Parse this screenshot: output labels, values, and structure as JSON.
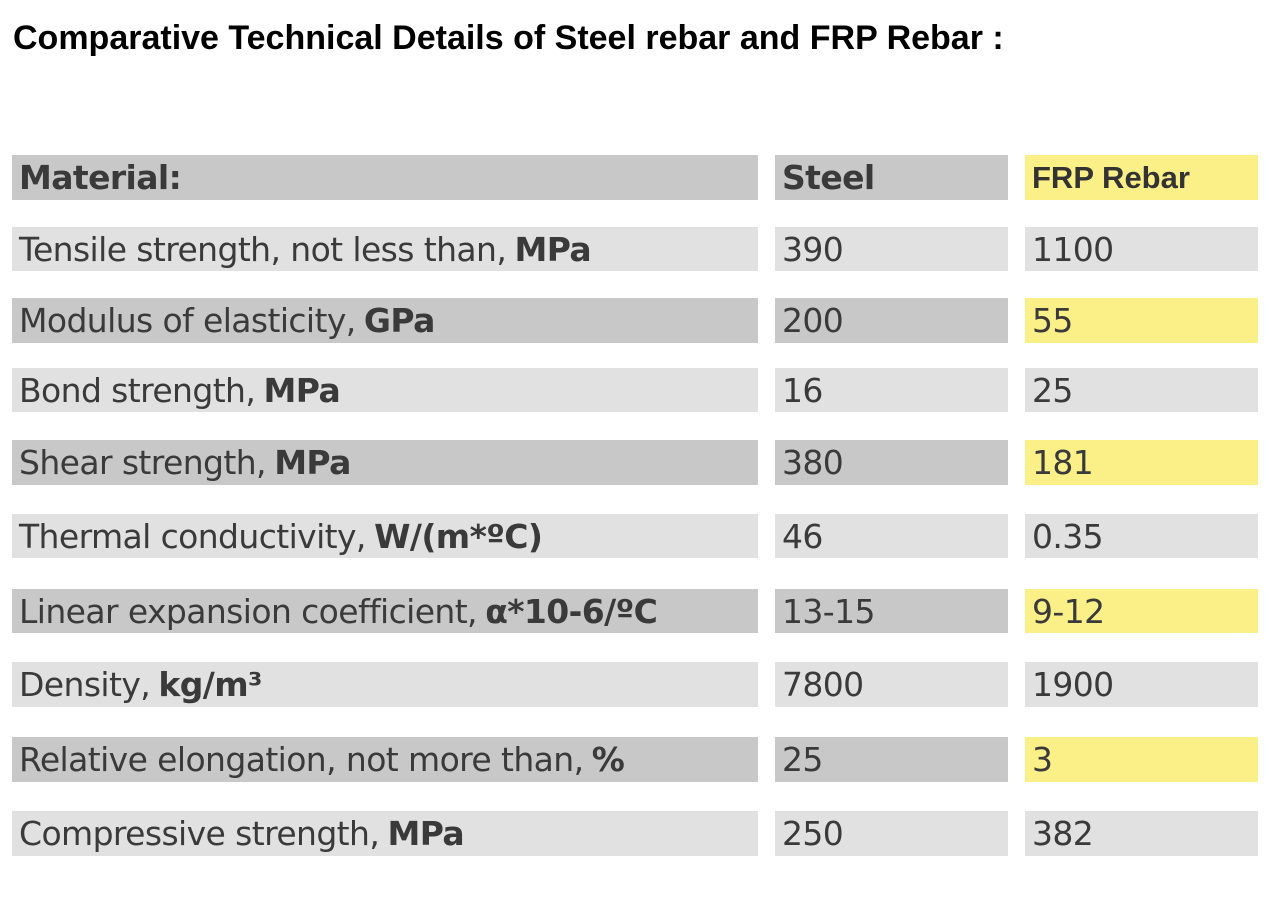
{
  "title": "Comparative Technical Details of Steel rebar and FRP Rebar :",
  "header": {
    "material": "Material:",
    "steel": "Steel",
    "frp": "FRP Rebar"
  },
  "rows": [
    {
      "label": "Tensile strength, not less than,",
      "unit": "MPa",
      "steel": "390",
      "frp": "1100",
      "frp_highlight": false
    },
    {
      "label": "Modulus of elasticity,",
      "unit": "GPa",
      "steel": "200",
      "frp": "55",
      "frp_highlight": true
    },
    {
      "label": "Bond strength,",
      "unit": "MPa",
      "steel": "16",
      "frp": "25",
      "frp_highlight": false
    },
    {
      "label": "Shear strength,",
      "unit": "MPa",
      "steel": "380",
      "frp": "181",
      "frp_highlight": true
    },
    {
      "label": "Thermal conductivity,",
      "unit": "W/(m*ºC)",
      "steel": "46",
      "frp": "0.35",
      "frp_highlight": false
    },
    {
      "label": "Linear expansion coefficient,",
      "unit": "α*10-6/ºC",
      "steel": "13-15",
      "frp": "9-12",
      "frp_highlight": true
    },
    {
      "label": "Density,",
      "unit": "kg/m³",
      "steel": "7800",
      "frp": "1900",
      "frp_highlight": false
    },
    {
      "label": "Relative elongation, not more than,",
      "unit": "%",
      "steel": "25",
      "frp": "3",
      "frp_highlight": true
    },
    {
      "label": "Compressive strength,",
      "unit": "MPa",
      "steel": "250",
      "frp": "382",
      "frp_highlight": false
    }
  ],
  "colors": {
    "row_light": "#e1e1e1",
    "row_dark": "#c8c8c8",
    "highlight_yellow": "#fbef87"
  }
}
